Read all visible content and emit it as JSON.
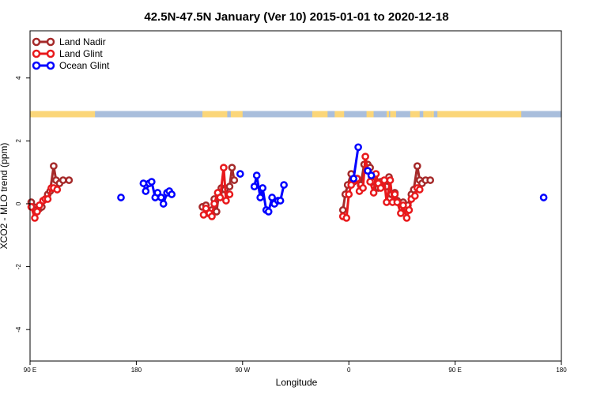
{
  "chart_data": {
    "type": "line",
    "title": "42.5N-47.5N January (Ver 10)   2015-01-01 to 2020-12-18",
    "xlabel": "Longitude",
    "ylabel": "XCO2 - MLO trend (ppm)",
    "xlim": [
      90,
      540
    ],
    "ylim": [
      -5,
      5.5
    ],
    "grid": false,
    "legend_position": "top-left",
    "x_ticks": [
      {
        "value": 90,
        "label": "90 E"
      },
      {
        "value": 180,
        "label": "180"
      },
      {
        "value": 270,
        "label": "90 W"
      },
      {
        "value": 360,
        "label": "0"
      },
      {
        "value": 450,
        "label": "90 E"
      },
      {
        "value": 540,
        "label": "180"
      }
    ],
    "y_ticks": [
      {
        "value": 4,
        "label": "4"
      },
      {
        "value": 2,
        "label": "2"
      },
      {
        "value": 0,
        "label": "0"
      },
      {
        "value": -2,
        "label": "-2"
      },
      {
        "value": -4,
        "label": "-4"
      }
    ],
    "land_ocean_strip": {
      "y_range": [
        2.75,
        2.95
      ],
      "land_color": "#fbd679",
      "ocean_color": "#a9bedc",
      "land_segments": [
        [
          90,
          145
        ],
        [
          236,
          257
        ],
        [
          260,
          270
        ],
        [
          329,
          342
        ],
        [
          348,
          356
        ],
        [
          375,
          381
        ],
        [
          392,
          394
        ],
        [
          395,
          400
        ],
        [
          412,
          420
        ],
        [
          423,
          430
        ],
        [
          435,
          506
        ],
        [
          430,
          432
        ]
      ]
    },
    "series": [
      {
        "name": "Land Nadir",
        "color": "#a52a2a",
        "segments": [
          [
            [
              91,
              0.05
            ],
            [
              93,
              -0.1
            ],
            [
              95,
              -0.2
            ],
            [
              98,
              -0.15
            ],
            [
              100,
              -0.1
            ],
            [
              103,
              0.15
            ],
            [
              105,
              0.3
            ],
            [
              107,
              0.4
            ],
            [
              110,
              1.2
            ],
            [
              112,
              0.75
            ],
            [
              115,
              0.65
            ],
            [
              118,
              0.75
            ],
            [
              123,
              0.75
            ]
          ],
          [
            [
              236,
              -0.1
            ],
            [
              239,
              -0.05
            ],
            [
              241,
              -0.3
            ],
            [
              244,
              -0.2
            ],
            [
              246,
              0.15
            ],
            [
              248,
              -0.25
            ],
            [
              250,
              0.35
            ],
            [
              252,
              0.5
            ],
            [
              255,
              0.45
            ],
            [
              259,
              0.55
            ],
            [
              261,
              1.15
            ],
            [
              263,
              0.75
            ]
          ],
          [
            [
              355,
              -0.2
            ],
            [
              357,
              0.3
            ],
            [
              359,
              0.6
            ],
            [
              362,
              0.95
            ],
            [
              364,
              0.7
            ],
            [
              367,
              0.8
            ],
            [
              370,
              0.6
            ],
            [
              373,
              1.25
            ],
            [
              376,
              1.25
            ],
            [
              378,
              1.15
            ],
            [
              380,
              0.7
            ],
            [
              382,
              0.7
            ],
            [
              385,
              0.5
            ],
            [
              387,
              0.7
            ],
            [
              390,
              0.6
            ],
            [
              392,
              0.55
            ],
            [
              394,
              0.85
            ],
            [
              396,
              0.3
            ],
            [
              399,
              0.35
            ],
            [
              401,
              0.1
            ],
            [
              404,
              0.0
            ],
            [
              406,
              0.05
            ],
            [
              408,
              -0.15
            ],
            [
              410,
              -0.05
            ],
            [
              413,
              0.3
            ],
            [
              415,
              0.45
            ],
            [
              418,
              1.2
            ],
            [
              420,
              0.75
            ],
            [
              422,
              0.65
            ],
            [
              425,
              0.75
            ],
            [
              429,
              0.75
            ]
          ]
        ]
      },
      {
        "name": "Land Glint",
        "color": "#e8191c",
        "segments": [
          [
            [
              91,
              -0.1
            ],
            [
              94,
              -0.45
            ],
            [
              96,
              -0.25
            ],
            [
              98,
              -0.05
            ],
            [
              101,
              0.1
            ],
            [
              103,
              0.15
            ],
            [
              105,
              0.15
            ],
            [
              108,
              0.5
            ],
            [
              110,
              0.5
            ],
            [
              113,
              0.45
            ]
          ],
          [
            [
              237,
              -0.35
            ],
            [
              239,
              -0.15
            ],
            [
              242,
              -0.3
            ],
            [
              244,
              -0.4
            ],
            [
              246,
              0.0
            ],
            [
              249,
              0.35
            ],
            [
              251,
              0.2
            ],
            [
              254,
              1.15
            ],
            [
              256,
              0.1
            ],
            [
              259,
              0.3
            ]
          ],
          [
            [
              355,
              -0.4
            ],
            [
              358,
              -0.45
            ],
            [
              360,
              0.3
            ],
            [
              362,
              0.6
            ],
            [
              365,
              0.75
            ],
            [
              367,
              0.8
            ],
            [
              369,
              0.4
            ],
            [
              372,
              0.5
            ],
            [
              374,
              1.5
            ],
            [
              376,
              1.05
            ],
            [
              378,
              0.7
            ],
            [
              381,
              0.35
            ],
            [
              383,
              0.95
            ],
            [
              385,
              0.65
            ],
            [
              387,
              0.5
            ],
            [
              390,
              0.75
            ],
            [
              392,
              0.05
            ],
            [
              395,
              0.75
            ],
            [
              397,
              0.05
            ],
            [
              399,
              0.3
            ],
            [
              401,
              0.05
            ],
            [
              404,
              -0.3
            ],
            [
              406,
              -0.05
            ],
            [
              409,
              -0.45
            ],
            [
              411,
              -0.2
            ],
            [
              413,
              0.15
            ],
            [
              416,
              0.25
            ],
            [
              418,
              0.5
            ],
            [
              420,
              0.45
            ]
          ]
        ]
      },
      {
        "name": "Ocean Glint",
        "color": "#0000ff",
        "segments": [
          [
            [
              167,
              0.2
            ]
          ],
          [
            [
              186,
              0.65
            ],
            [
              188,
              0.4
            ],
            [
              191,
              0.65
            ],
            [
              193,
              0.7
            ],
            [
              196,
              0.2
            ],
            [
              198,
              0.35
            ],
            [
              201,
              0.2
            ],
            [
              203,
              0.0
            ],
            [
              206,
              0.35
            ],
            [
              208,
              0.4
            ],
            [
              210,
              0.3
            ]
          ],
          [
            [
              268,
              0.95
            ]
          ],
          [
            [
              280,
              0.55
            ],
            [
              282,
              0.9
            ],
            [
              285,
              0.2
            ],
            [
              287,
              0.5
            ],
            [
              290,
              -0.2
            ],
            [
              292,
              -0.25
            ],
            [
              295,
              0.2
            ],
            [
              297,
              0.0
            ],
            [
              300,
              0.1
            ],
            [
              302,
              0.1
            ],
            [
              305,
              0.6
            ]
          ],
          [
            [
              364,
              0.8
            ],
            [
              368,
              1.8
            ]
          ],
          [
            [
              376,
              1.05
            ],
            [
              379,
              0.9
            ]
          ],
          [
            [
              525,
              0.2
            ]
          ]
        ]
      }
    ]
  }
}
